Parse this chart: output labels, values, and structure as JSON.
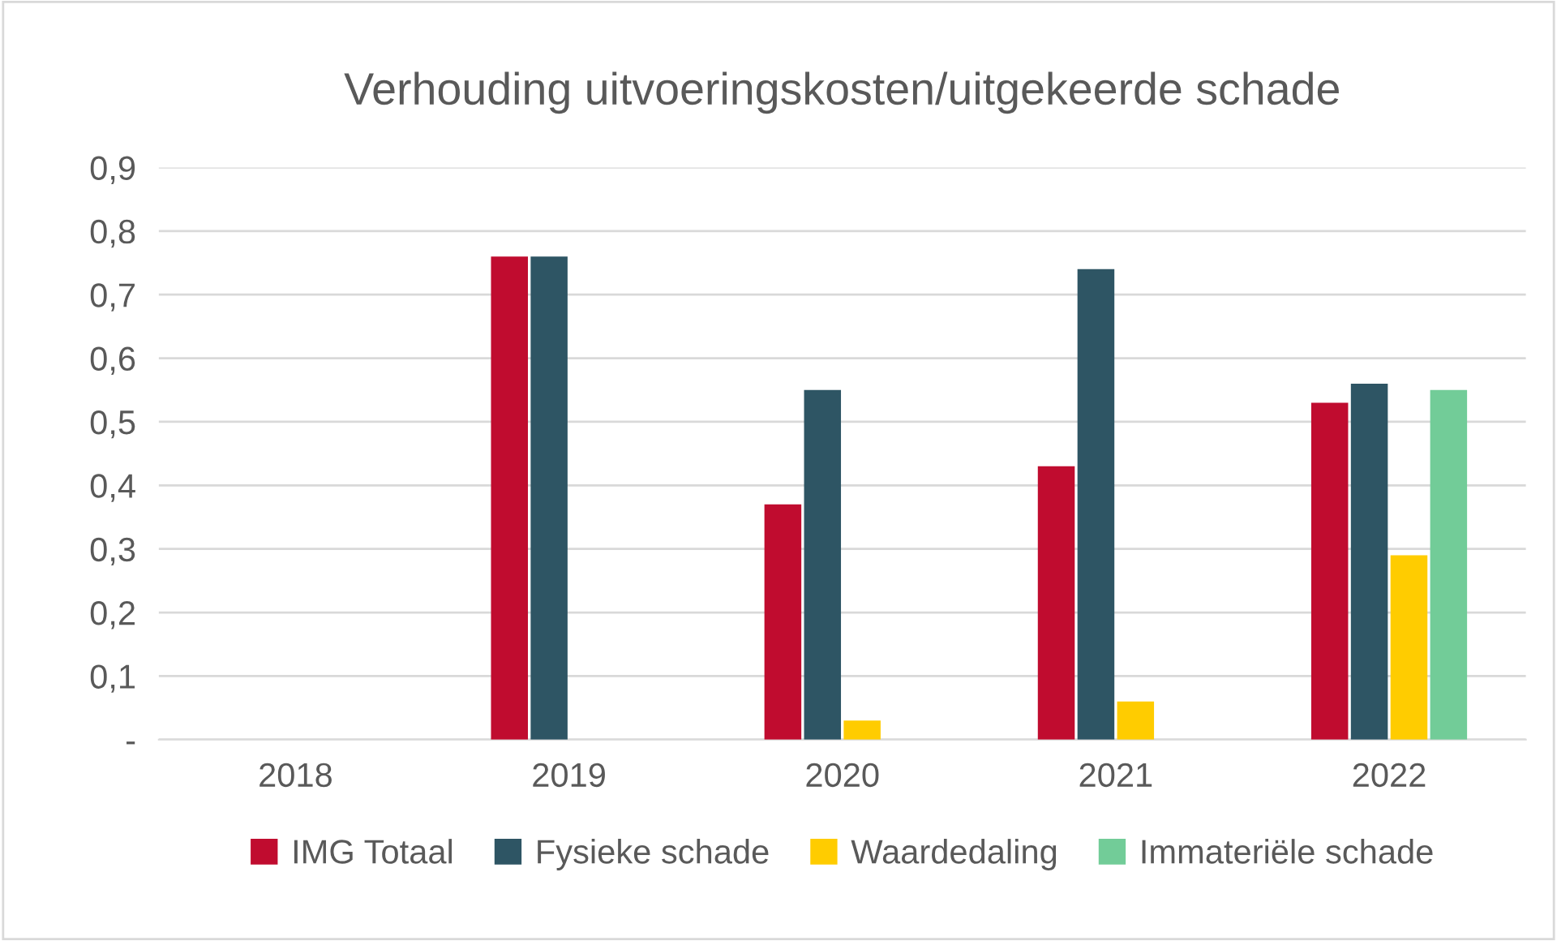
{
  "chart_data": {
    "type": "bar",
    "title": "Verhouding uitvoeringskosten/uitgekeerde schade",
    "categories": [
      "2018",
      "2019",
      "2020",
      "2021",
      "2022"
    ],
    "series": [
      {
        "name": "IMG Totaal",
        "color": "#c00c2f",
        "values": [
          null,
          0.76,
          0.37,
          0.43,
          0.53
        ]
      },
      {
        "name": "Fysieke schade",
        "color": "#2e5564",
        "values": [
          null,
          0.76,
          0.55,
          0.74,
          0.56
        ]
      },
      {
        "name": "Waardedaling",
        "color": "#ffcc00",
        "values": [
          null,
          null,
          0.03,
          0.06,
          0.29
        ]
      },
      {
        "name": "Immateriële schade",
        "color": "#72cc98",
        "values": [
          null,
          null,
          null,
          null,
          0.55
        ]
      }
    ],
    "ylim": [
      0,
      0.9
    ],
    "yticks": [
      {
        "value": 0,
        "label": "-"
      },
      {
        "value": 0.1,
        "label": "0,1"
      },
      {
        "value": 0.2,
        "label": "0,2"
      },
      {
        "value": 0.3,
        "label": "0,3"
      },
      {
        "value": 0.4,
        "label": "0,4"
      },
      {
        "value": 0.5,
        "label": "0,5"
      },
      {
        "value": 0.6,
        "label": "0,6"
      },
      {
        "value": 0.7,
        "label": "0,7"
      },
      {
        "value": 0.8,
        "label": "0,8"
      },
      {
        "value": 0.9,
        "label": "0,9"
      }
    ],
    "grid": "y",
    "legend": "bottom"
  }
}
